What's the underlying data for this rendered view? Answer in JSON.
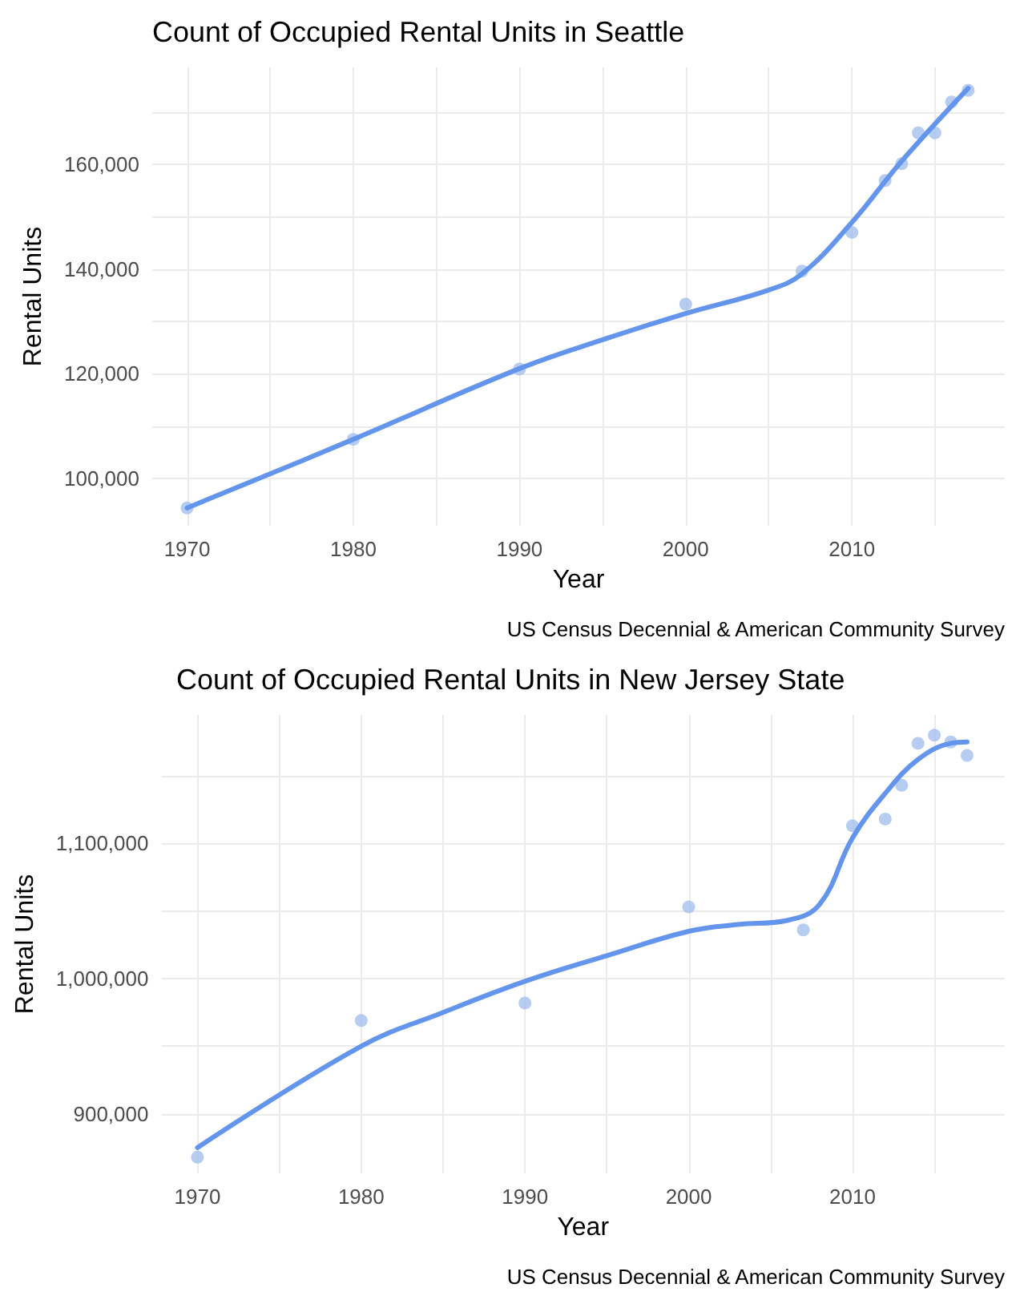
{
  "chart_data": [
    {
      "type": "scatter",
      "title": "Count of Occupied Rental Units in Seattle",
      "xlabel": "Year",
      "ylabel": "Rental Units",
      "annotations": [
        "US Census Decennial & American Community Survey"
      ],
      "series": [
        {
          "color": "#a4c0ee",
          "marker": "circle",
          "x": [
            1970,
            1980,
            1990,
            2000,
            2007,
            2010,
            2012,
            2013,
            2014,
            2015,
            2016,
            2017
          ],
          "values": [
            94400,
            107500,
            120900,
            133300,
            139600,
            147000,
            156900,
            160100,
            166000,
            166000,
            171900,
            174100
          ]
        },
        {
          "type": "line",
          "color": "#6495ed",
          "marker": "none",
          "line_style": "solid",
          "x": [
            1970,
            1980,
            1990,
            1995,
            2000,
            2005,
            2007,
            2010,
            2013,
            2017
          ],
          "values": [
            94400,
            107500,
            121000,
            126500,
            131500,
            136000,
            139100,
            148900,
            160600,
            174500
          ]
        }
      ],
      "xlim": [
        1967.9,
        2019.2
      ],
      "xticks": [
        1970,
        {
          "value": 1975,
          "label": null
        },
        1980,
        {
          "value": 1985,
          "label": null
        },
        1990,
        {
          "value": 1995,
          "label": null
        },
        2000,
        {
          "value": 2005,
          "label": null
        },
        2010,
        {
          "value": 2015,
          "label": null
        }
      ],
      "ylim": [
        91000,
        178500
      ],
      "yticks": [
        {
          "value": 100000,
          "label": "100,000"
        },
        {
          "value": 110000,
          "label": null
        },
        {
          "value": 120000,
          "label": "120,000"
        },
        {
          "value": 130000,
          "label": null
        },
        {
          "value": 140000,
          "label": "140,000"
        },
        {
          "value": 150000,
          "label": null
        },
        {
          "value": 160000,
          "label": "160,000"
        },
        {
          "value": 170000,
          "label": null
        }
      ],
      "grid": true
    },
    {
      "type": "scatter",
      "title": "Count of Occupied Rental Units in New Jersey State",
      "xlabel": "Year",
      "ylabel": "Rental Units",
      "annotations": [
        "US Census Decennial & American Community Survey"
      ],
      "series": [
        {
          "color": "#a4c0ee",
          "marker": "circle",
          "x": [
            1970,
            1980,
            1990,
            2000,
            2007,
            2010,
            2012,
            2013,
            2014,
            2015,
            2016,
            2017
          ],
          "values": [
            868000,
            969000,
            982000,
            1053000,
            1036000,
            1113000,
            1118000,
            1143000,
            1174000,
            1180000,
            1175000,
            1165000
          ]
        },
        {
          "type": "line",
          "color": "#6495ed",
          "marker": "none",
          "line_style": "solid",
          "x": [
            1970,
            1980,
            1985,
            1990,
            1995,
            2000,
            2003,
            2006,
            2008,
            2010,
            2012,
            2014,
            2016,
            2017
          ],
          "values": [
            875000,
            950000,
            975000,
            998000,
            1017000,
            1035000,
            1040000,
            1043000,
            1055000,
            1104000,
            1137000,
            1162000,
            1174000,
            1175000
          ]
        }
      ],
      "xlim": [
        1967.8,
        2019.3
      ],
      "xticks": [
        1970,
        {
          "value": 1975,
          "label": null
        },
        1980,
        {
          "value": 1985,
          "label": null
        },
        1990,
        {
          "value": 1995,
          "label": null
        },
        2000,
        {
          "value": 2005,
          "label": null
        },
        2010,
        {
          "value": 2015,
          "label": null
        }
      ],
      "ylim": [
        856000,
        1195000
      ],
      "yticks": [
        {
          "value": 900000,
          "label": "900,000"
        },
        {
          "value": 950000,
          "label": null
        },
        {
          "value": 1000000,
          "label": "1,000,000"
        },
        {
          "value": 1050000,
          "label": null
        },
        {
          "value": 1100000,
          "label": "1,100,000"
        },
        {
          "value": 1150000,
          "label": null
        }
      ],
      "grid": true
    }
  ]
}
